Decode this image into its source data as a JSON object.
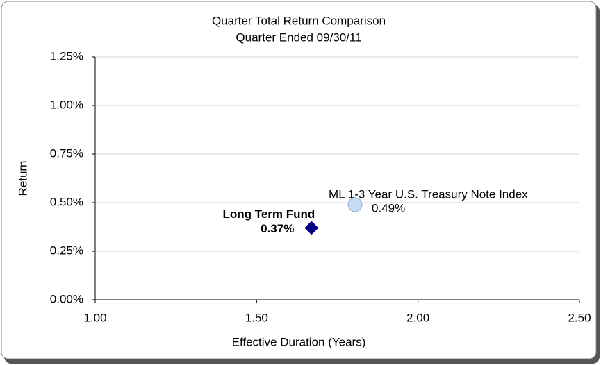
{
  "chart_data": {
    "type": "scatter",
    "title": "Quarter Total Return Comparison",
    "subtitle": "Quarter Ended 09/30/11",
    "x_label": "Effective Duration (Years)",
    "y_label": "Return",
    "xlim": [
      1.0,
      2.5
    ],
    "ylim": [
      0,
      1.25
    ],
    "xticks": [
      {
        "value": 1.0,
        "label": "1.00"
      },
      {
        "value": 1.5,
        "label": "1.50"
      },
      {
        "value": 2.0,
        "label": "2.00"
      },
      {
        "value": 2.5,
        "label": "2.50"
      }
    ],
    "yticks": [
      {
        "value": 0,
        "label": "0.00%"
      },
      {
        "value": 0.25,
        "label": "0.25%"
      },
      {
        "value": 0.5,
        "label": "0.50%"
      },
      {
        "value": 0.75,
        "label": "0.75%"
      },
      {
        "value": 1.0,
        "label": "1.00%"
      },
      {
        "value": 1.25,
        "label": "1.25%"
      }
    ],
    "grid": true,
    "series": [
      {
        "name": "Long Term Fund",
        "color": "#000080",
        "marker": "diamond",
        "x": [
          1.67
        ],
        "values": [
          0.37
        ],
        "value_labels": [
          "0.37%"
        ]
      },
      {
        "name": "ML 1-3 Year U.S. Treasury Note Index",
        "color": "#c6dcf3",
        "marker": "circle",
        "x": [
          1.805
        ],
        "values": [
          0.49
        ],
        "value_labels": [
          "0.49%"
        ]
      }
    ]
  }
}
